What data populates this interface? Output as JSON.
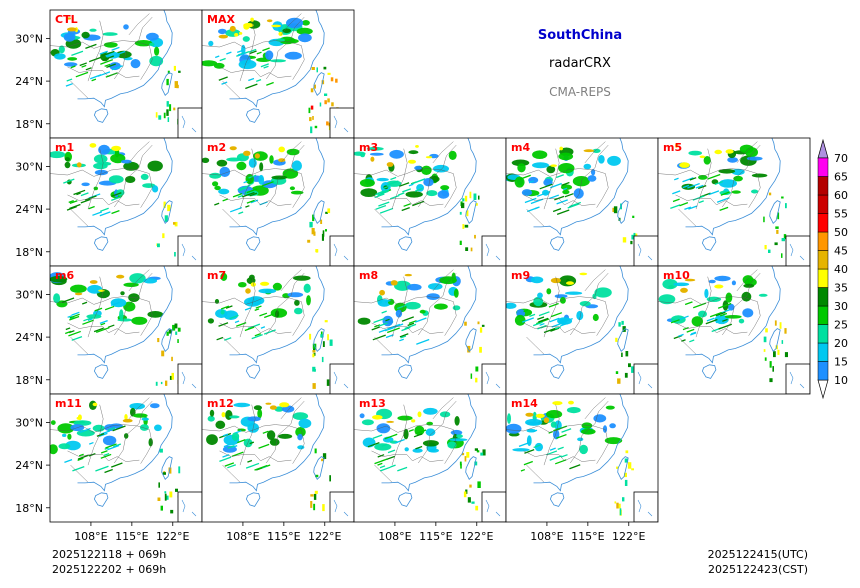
{
  "chart_data": {
    "type": "heatmap",
    "title": "SouthChina",
    "subtitle": "radarCRX",
    "source": "CMA-REPS",
    "variable": "radarCRX",
    "panels": [
      "CTL",
      "MAX",
      "m1",
      "m2",
      "m3",
      "m4",
      "m5",
      "m6",
      "m7",
      "m8",
      "m9",
      "m10",
      "m11",
      "m12",
      "m13",
      "m14"
    ],
    "lon_range": [
      101,
      127
    ],
    "lat_range": [
      16,
      34
    ],
    "x_ticks": [
      "108°E",
      "115°E",
      "122°E"
    ],
    "x_tick_values": [
      108,
      115,
      122
    ],
    "y_ticks": [
      "30°N",
      "24°N",
      "18°N"
    ],
    "y_tick_values": [
      30,
      24,
      18
    ],
    "colorbar": {
      "levels": [
        10,
        15,
        20,
        25,
        30,
        35,
        40,
        45,
        50,
        55,
        60,
        65,
        70
      ],
      "labels": [
        "10",
        "15",
        "20",
        "25",
        "30",
        "35",
        "40",
        "45",
        "50",
        "55",
        "60",
        "65",
        "70"
      ],
      "colors": [
        "#1e90ff",
        "#00c8f0",
        "#00e0a0",
        "#00c800",
        "#008800",
        "#ffff00",
        "#e6b400",
        "#ff9600",
        "#ff0000",
        "#cc0000",
        "#b40000",
        "#ff00f0",
        "#9900cc",
        "#ae90e0"
      ],
      "extend": "both"
    }
  },
  "footer": {
    "init_utc": "2025122118  +  069h",
    "init_cst": "2025122202  +  069h",
    "valid_utc": "2025122415(UTC)",
    "valid_cst": "2025122423(CST)"
  },
  "colors": {
    "panel_label": "#ff0000",
    "title": "#0000cc",
    "source": "#808080"
  }
}
